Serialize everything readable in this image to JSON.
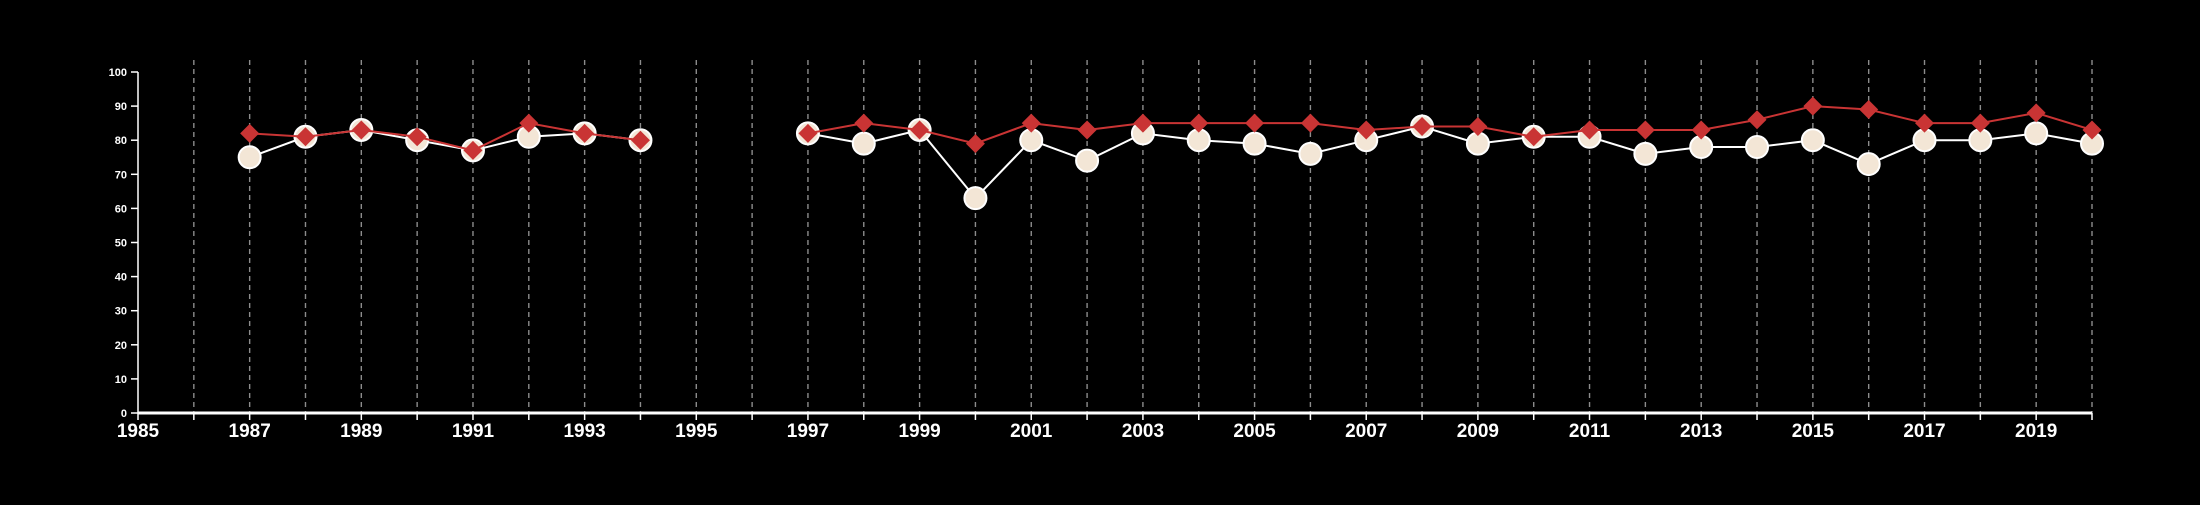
{
  "colors": {
    "background": "#000000",
    "axis": "#ffffff",
    "gridline": "#8c8c8c",
    "series_light_fill": "#f3e6d6",
    "series_light_stroke": "#ffffff",
    "series_red": "#c93434"
  },
  "chart_data": {
    "type": "line",
    "title": "",
    "xlabel": "",
    "ylabel": "",
    "xlim": [
      1985,
      2020
    ],
    "ylim": [
      0,
      100
    ],
    "grid": {
      "x": true,
      "y": false,
      "style": "dashed vertical lines at every year"
    },
    "legend": "none",
    "y_ticks": [
      "0",
      "10",
      "20",
      "30",
      "40",
      "50",
      "60",
      "70",
      "80",
      "90",
      "100"
    ],
    "x_tick_labels": [
      "1985",
      "1987",
      "1989",
      "1991",
      "1993",
      "1995",
      "1997",
      "1999",
      "2001",
      "2003",
      "2005",
      "2007",
      "2009",
      "2011",
      "2013",
      "2015",
      "2017",
      "2019"
    ],
    "series": [
      {
        "marker": "circle",
        "color": "#f3e6d6",
        "points": [
          [
            1987,
            75
          ],
          [
            1988,
            81
          ],
          [
            1989,
            83
          ],
          [
            1990,
            80
          ],
          [
            1991,
            77
          ],
          [
            1992,
            81
          ],
          [
            1993,
            82
          ],
          [
            1994,
            80
          ],
          null,
          [
            1997,
            82
          ],
          [
            1998,
            79
          ],
          [
            1999,
            83
          ],
          [
            2000,
            63
          ],
          [
            2001,
            80
          ],
          [
            2002,
            74
          ],
          [
            2003,
            82
          ],
          [
            2004,
            80
          ],
          [
            2005,
            79
          ],
          [
            2006,
            76
          ],
          [
            2007,
            80
          ],
          [
            2008,
            84
          ],
          [
            2009,
            79
          ],
          [
            2010,
            81
          ],
          [
            2011,
            81
          ],
          [
            2012,
            76
          ],
          [
            2013,
            78
          ],
          [
            2014,
            78
          ],
          [
            2015,
            80
          ],
          [
            2016,
            73
          ],
          [
            2017,
            80
          ],
          [
            2018,
            80
          ],
          [
            2019,
            82
          ],
          [
            2020,
            79
          ]
        ]
      },
      {
        "marker": "diamond",
        "color": "#c93434",
        "points": [
          [
            1987,
            82
          ],
          [
            1988,
            81
          ],
          [
            1989,
            83
          ],
          [
            1990,
            81
          ],
          [
            1991,
            77
          ],
          [
            1992,
            85
          ],
          [
            1993,
            82
          ],
          [
            1994,
            80
          ],
          null,
          [
            1997,
            82
          ],
          [
            1998,
            85
          ],
          [
            1999,
            83
          ],
          [
            2000,
            79
          ],
          [
            2001,
            85
          ],
          [
            2002,
            83
          ],
          [
            2003,
            85
          ],
          [
            2004,
            85
          ],
          [
            2005,
            85
          ],
          [
            2006,
            85
          ],
          [
            2007,
            83
          ],
          [
            2008,
            84
          ],
          [
            2009,
            84
          ],
          [
            2010,
            81
          ],
          [
            2011,
            83
          ],
          [
            2012,
            83
          ],
          [
            2013,
            83
          ],
          [
            2014,
            86
          ],
          [
            2015,
            90
          ],
          [
            2016,
            89
          ],
          [
            2017,
            85
          ],
          [
            2018,
            85
          ],
          [
            2019,
            88
          ],
          [
            2020,
            83
          ]
        ]
      }
    ]
  }
}
